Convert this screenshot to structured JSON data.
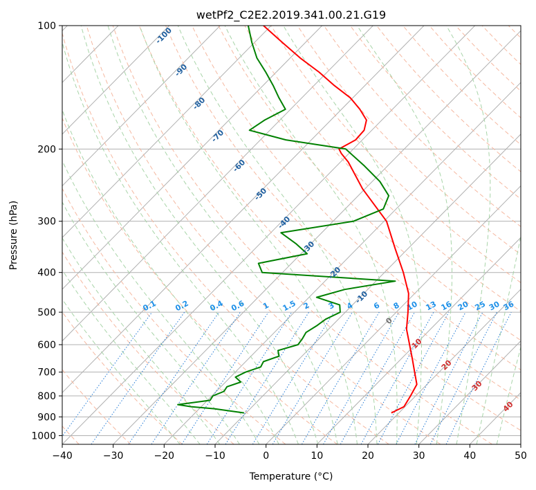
{
  "chart_data": {
    "type": "skew-t",
    "title": "wetPf2_C2E2.2019.341.00.21.G19",
    "xlabel": "Temperature (°C)",
    "ylabel": "Pressure (hPa)",
    "xlim": [
      -40,
      50
    ],
    "ylim": [
      1050,
      100
    ],
    "y_scale": "log",
    "x_ticks": [
      -40,
      -30,
      -20,
      -10,
      0,
      10,
      20,
      30,
      40,
      50
    ],
    "x_tick_labels": [
      "−40",
      "−30",
      "−20",
      "−10",
      "0",
      "10",
      "20",
      "30",
      "40",
      "50"
    ],
    "y_ticks": [
      100,
      200,
      300,
      400,
      500,
      600,
      700,
      800,
      900,
      1000
    ],
    "y_tick_labels": [
      "100",
      "200",
      "300",
      "400",
      "500",
      "600",
      "700",
      "800",
      "900",
      "1000"
    ],
    "grid": true,
    "series": [
      {
        "color": "#ff0000",
        "pressure": [
          880,
          850,
          800,
          750,
          700,
          650,
          600,
          550,
          500,
          450,
          400,
          350,
          300,
          250,
          215,
          205,
          200,
          190,
          180,
          170,
          160,
          150,
          140,
          130,
          120,
          110,
          100
        ],
        "temperature": [
          18.5,
          19.8,
          19.0,
          18.0,
          15.2,
          12.2,
          8.9,
          5.3,
          2.3,
          -1.2,
          -6.3,
          -12.5,
          -19.5,
          -30.5,
          -38.5,
          -41.5,
          -42.8,
          -41.3,
          -41.5,
          -43.0,
          -46.4,
          -50.5,
          -56.0,
          -61.5,
          -68.0,
          -74.5,
          -81.5
        ]
      },
      {
        "color": "#008000",
        "pressure": [
          880,
          860,
          850,
          840,
          820,
          800,
          780,
          760,
          740,
          720,
          700,
          680,
          660,
          640,
          620,
          600,
          580,
          560,
          540,
          520,
          500,
          480,
          460,
          440,
          420,
          400,
          380,
          360,
          340,
          320,
          300,
          280,
          260,
          240,
          220,
          200,
          190,
          180,
          170,
          160,
          150,
          140,
          130,
          120,
          110,
          100
        ],
        "temperature": [
          -10.4,
          -17.0,
          -22.0,
          -25.0,
          -19.5,
          -19.8,
          -18.5,
          -18.8,
          -17.0,
          -19.0,
          -18.0,
          -16.0,
          -16.5,
          -14.5,
          -15.8,
          -13.0,
          -13.3,
          -13.8,
          -13.0,
          -12.5,
          -11.0,
          -12.5,
          -18.5,
          -14.5,
          -6.2,
          -34.0,
          -36.5,
          -28.8,
          -33.0,
          -38.0,
          -26.0,
          -22.5,
          -24.0,
          -28.5,
          -34.5,
          -41.5,
          -55.0,
          -64.0,
          -63.0,
          -61.0,
          -64.5,
          -68.0,
          -72.0,
          -76.5,
          -80.5,
          -84.5
        ]
      }
    ],
    "dry_adiabat_labels": [
      "-100",
      "-90",
      "-80",
      "-70",
      "-60",
      "-50",
      "-40",
      "-30",
      "-20",
      "-10",
      "0",
      "10",
      "20",
      "30",
      "40"
    ],
    "mixing_ratio_labels": [
      "0.1",
      "0.2",
      "0.4",
      "0.6",
      "1",
      "1.5",
      "2",
      "3",
      "4",
      "6",
      "8",
      "10",
      "13",
      "16",
      "20",
      "25",
      "30",
      "36"
    ],
    "colors": {
      "temperature": "#ff0000",
      "dewpoint": "#008000",
      "dry_adiabat": "#f5b8a0",
      "moist_adiabat": "#a8d4a8",
      "mixing_ratio": "#1f78d4",
      "isotherm": "#b0b0b0",
      "label_cold": "#1f5f9f",
      "label_warm": "#d03030",
      "label_mixing": "#1e90e8"
    }
  }
}
